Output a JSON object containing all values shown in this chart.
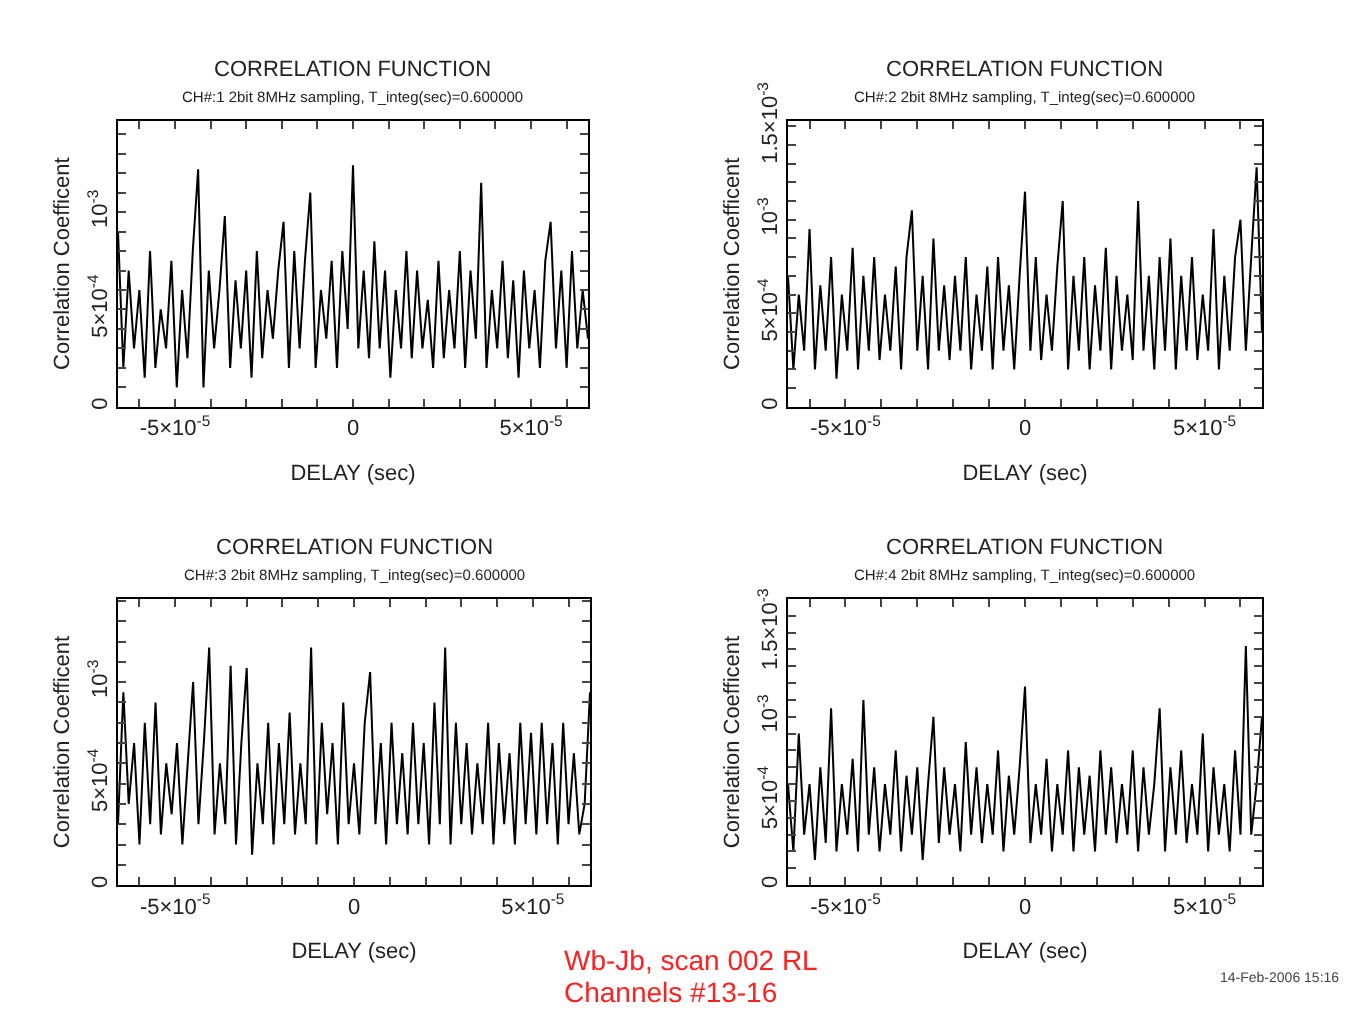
{
  "chart_data": [
    {
      "type": "line",
      "title": "CORRELATION FUNCTION",
      "subtitle": "CH#:1 2bit 8MHz sampling, T_integ(sec)=0.600000",
      "xlabel": "DELAY (sec)",
      "ylabel": "Correlation Coefficent",
      "x": [
        -6.6e-05,
        -6.45e-05,
        -6.3e-05,
        -6.15e-05,
        -6e-05,
        -5.85e-05,
        -5.7e-05,
        -5.55e-05,
        -5.4e-05,
        -5.25e-05,
        -5.1e-05,
        -4.95e-05,
        -4.8e-05,
        -4.65e-05,
        -4.5e-05,
        -4.35e-05,
        -4.2e-05,
        -4.05e-05,
        -3.9e-05,
        -3.75e-05,
        -3.6e-05,
        -3.45e-05,
        -3.3e-05,
        -3.15e-05,
        -3e-05,
        -2.85e-05,
        -2.7e-05,
        -2.55e-05,
        -2.4e-05,
        -2.25e-05,
        -2.1e-05,
        -1.95e-05,
        -1.8e-05,
        -1.65e-05,
        -1.5e-05,
        -1.35e-05,
        -1.2e-05,
        -1.05e-05,
        -9e-06,
        -7.5e-06,
        -6e-06,
        -4.5e-06,
        -3e-06,
        -1.5e-06,
        0,
        1.5e-06,
        3e-06,
        4.5e-06,
        6e-06,
        7.5e-06,
        9e-06,
        1.05e-05,
        1.2e-05,
        1.35e-05,
        1.5e-05,
        1.65e-05,
        1.8e-05,
        1.95e-05,
        2.1e-05,
        2.25e-05,
        2.4e-05,
        2.55e-05,
        2.7e-05,
        2.85e-05,
        3e-05,
        3.15e-05,
        3.3e-05,
        3.45e-05,
        3.6e-05,
        3.75e-05,
        3.9e-05,
        4.05e-05,
        4.2e-05,
        4.35e-05,
        4.5e-05,
        4.65e-05,
        4.8e-05,
        4.95e-05,
        5.1e-05,
        5.25e-05,
        5.4e-05,
        5.55e-05,
        5.7e-05,
        5.85e-05,
        6e-05,
        6.15e-05,
        6.3e-05,
        6.45e-05,
        6.6e-05
      ],
      "series": [
        {
          "color": "#000000",
          "values": [
            0.0009,
            0.0002,
            0.0007,
            0.0003,
            0.0006,
            0.00015,
            0.0008,
            0.0002,
            0.0005,
            0.0003,
            0.00075,
            0.0001,
            0.0006,
            0.00025,
            0.0008,
            0.00122,
            0.0001,
            0.0007,
            0.0003,
            0.0006,
            0.00098,
            0.0002,
            0.00065,
            0.0003,
            0.0007,
            0.00015,
            0.0008,
            0.00025,
            0.0006,
            0.00035,
            0.0007,
            0.00095,
            0.0002,
            0.0008,
            0.0003,
            0.00075,
            0.0011,
            0.0002,
            0.0006,
            0.00035,
            0.00075,
            0.0002,
            0.0008,
            0.0004,
            0.00124,
            0.0003,
            0.0007,
            0.00025,
            0.00085,
            0.0003,
            0.0007,
            0.00015,
            0.0006,
            0.0003,
            0.0008,
            0.00025,
            0.0007,
            0.0003,
            0.00055,
            0.0002,
            0.00075,
            0.00025,
            0.0006,
            0.0003,
            0.0008,
            0.0002,
            0.0007,
            0.00035,
            0.00115,
            0.0002,
            0.0006,
            0.0003,
            0.00075,
            0.00025,
            0.00065,
            0.00015,
            0.0007,
            0.0003,
            0.0006,
            0.0002,
            0.00075,
            0.00095,
            0.0003,
            0.0007,
            0.0002,
            0.0008,
            0.0003,
            0.0006,
            0.00035
          ]
        }
      ],
      "xlim": [
        -6.6e-05,
        6.6e-05
      ],
      "ylim": [
        0,
        0.00147
      ],
      "xticks": [
        {
          "value": -6e-05,
          "label": null
        },
        {
          "value": -5e-05,
          "label": "-5×10$^{-5}$"
        },
        {
          "value": -4e-05,
          "label": null
        },
        {
          "value": -3e-05,
          "label": null
        },
        {
          "value": -2e-05,
          "label": null
        },
        {
          "value": -1e-05,
          "label": null
        },
        0,
        {
          "value": 1e-05,
          "label": null
        },
        {
          "value": 2e-05,
          "label": null
        },
        {
          "value": 3e-05,
          "label": null
        },
        {
          "value": 4e-05,
          "label": null
        },
        {
          "value": 5e-05,
          "label": "5×10$^{-5}$"
        },
        {
          "value": 6e-05,
          "label": null
        }
      ],
      "yticks": [
        0,
        {
          "value": 0.0001,
          "label": null
        },
        {
          "value": 0.0002,
          "label": null
        },
        {
          "value": 0.0003,
          "label": null
        },
        {
          "value": 0.0004,
          "label": null
        },
        {
          "value": 0.0005,
          "label": "5×10$^{-4}$"
        },
        {
          "value": 0.0006,
          "label": null
        },
        {
          "value": 0.0007,
          "label": null
        },
        {
          "value": 0.0008,
          "label": null
        },
        {
          "value": 0.0009,
          "label": null
        },
        {
          "value": 0.001,
          "label": "10$^{-3}$"
        },
        {
          "value": 0.0011,
          "label": null
        },
        {
          "value": 0.0012,
          "label": null
        },
        {
          "value": 0.0013,
          "label": null
        },
        {
          "value": 0.0014,
          "label": null
        }
      ]
    },
    {
      "type": "line",
      "title": "CORRELATION FUNCTION",
      "subtitle": "CH#:2 2bit 8MHz sampling, T_integ(sec)=0.600000",
      "xlabel": "DELAY (sec)",
      "ylabel": "Correlation Coefficent",
      "x": [
        -6.6e-05,
        -6.45e-05,
        -6.3e-05,
        -6.15e-05,
        -6e-05,
        -5.85e-05,
        -5.7e-05,
        -5.55e-05,
        -5.4e-05,
        -5.25e-05,
        -5.1e-05,
        -4.95e-05,
        -4.8e-05,
        -4.65e-05,
        -4.5e-05,
        -4.35e-05,
        -4.2e-05,
        -4.05e-05,
        -3.9e-05,
        -3.75e-05,
        -3.6e-05,
        -3.45e-05,
        -3.3e-05,
        -3.15e-05,
        -3e-05,
        -2.85e-05,
        -2.7e-05,
        -2.55e-05,
        -2.4e-05,
        -2.25e-05,
        -2.1e-05,
        -1.95e-05,
        -1.8e-05,
        -1.65e-05,
        -1.5e-05,
        -1.35e-05,
        -1.2e-05,
        -1.05e-05,
        -9e-06,
        -7.5e-06,
        -6e-06,
        -4.5e-06,
        -3e-06,
        -1.5e-06,
        0,
        1.5e-06,
        3e-06,
        4.5e-06,
        6e-06,
        7.5e-06,
        9e-06,
        1.05e-05,
        1.2e-05,
        1.35e-05,
        1.5e-05,
        1.65e-05,
        1.8e-05,
        1.95e-05,
        2.1e-05,
        2.25e-05,
        2.4e-05,
        2.55e-05,
        2.7e-05,
        2.85e-05,
        3e-05,
        3.15e-05,
        3.3e-05,
        3.45e-05,
        3.6e-05,
        3.75e-05,
        3.9e-05,
        4.05e-05,
        4.2e-05,
        4.35e-05,
        4.5e-05,
        4.65e-05,
        4.8e-05,
        4.95e-05,
        5.1e-05,
        5.25e-05,
        5.4e-05,
        5.55e-05,
        5.7e-05,
        5.85e-05,
        6e-05,
        6.15e-05,
        6.3e-05,
        6.45e-05,
        6.6e-05
      ],
      "series": [
        {
          "color": "#000000",
          "values": [
            0.0007,
            0.0002,
            0.0006,
            0.0003,
            0.00095,
            0.0002,
            0.00065,
            0.0003,
            0.0008,
            0.00015,
            0.0006,
            0.0003,
            0.00085,
            0.0002,
            0.0007,
            0.0003,
            0.0008,
            0.00025,
            0.0006,
            0.0003,
            0.00075,
            0.0002,
            0.0008,
            0.00105,
            0.0003,
            0.0007,
            0.0002,
            0.0009,
            0.0003,
            0.00065,
            0.00025,
            0.0007,
            0.0003,
            0.0008,
            0.0002,
            0.0006,
            0.0003,
            0.00075,
            0.0002,
            0.0008,
            0.0003,
            0.00065,
            0.0002,
            0.0007,
            0.00115,
            0.0003,
            0.0008,
            0.00025,
            0.0006,
            0.0003,
            0.00075,
            0.0011,
            0.0002,
            0.0007,
            0.0003,
            0.0008,
            0.0002,
            0.00065,
            0.0003,
            0.00085,
            0.0002,
            0.0007,
            0.0003,
            0.0006,
            0.00025,
            0.0011,
            0.0003,
            0.0007,
            0.0002,
            0.0008,
            0.0003,
            0.0009,
            0.0002,
            0.0007,
            0.0003,
            0.0008,
            0.00025,
            0.0006,
            0.0003,
            0.00095,
            0.0002,
            0.0007,
            0.0003,
            0.0008,
            0.001,
            0.0003,
            0.0008,
            0.00128,
            0.0004
          ]
        }
      ],
      "xlim": [
        -6.6e-05,
        6.6e-05
      ],
      "ylim": [
        0,
        0.00153
      ],
      "xticks": [
        {
          "value": -6e-05,
          "label": null
        },
        {
          "value": -5e-05,
          "label": "-5×10$^{-5}$"
        },
        {
          "value": -4e-05,
          "label": null
        },
        {
          "value": -3e-05,
          "label": null
        },
        {
          "value": -2e-05,
          "label": null
        },
        {
          "value": -1e-05,
          "label": null
        },
        0,
        {
          "value": 1e-05,
          "label": null
        },
        {
          "value": 2e-05,
          "label": null
        },
        {
          "value": 3e-05,
          "label": null
        },
        {
          "value": 4e-05,
          "label": null
        },
        {
          "value": 5e-05,
          "label": "5×10$^{-5}$"
        },
        {
          "value": 6e-05,
          "label": null
        }
      ],
      "yticks": [
        0,
        {
          "value": 0.0001,
          "label": null
        },
        {
          "value": 0.0002,
          "label": null
        },
        {
          "value": 0.0003,
          "label": null
        },
        {
          "value": 0.0004,
          "label": null
        },
        {
          "value": 0.0005,
          "label": "5×10$^{-4}$"
        },
        {
          "value": 0.0006,
          "label": null
        },
        {
          "value": 0.0007,
          "label": null
        },
        {
          "value": 0.0008,
          "label": null
        },
        {
          "value": 0.0009,
          "label": null
        },
        {
          "value": 0.001,
          "label": "10$^{-3}$"
        },
        {
          "value": 0.0011,
          "label": null
        },
        {
          "value": 0.0012,
          "label": null
        },
        {
          "value": 0.0013,
          "label": null
        },
        {
          "value": 0.0014,
          "label": null
        },
        {
          "value": 0.0015,
          "label": "1.5×10$^{-3}$"
        }
      ]
    },
    {
      "type": "line",
      "title": "CORRELATION FUNCTION",
      "subtitle": "CH#:3 2bit 8MHz sampling, T_integ(sec)=0.600000",
      "xlabel": "DELAY (sec)",
      "ylabel": "Correlation Coefficent",
      "x": [
        -6.6e-05,
        -6.45e-05,
        -6.3e-05,
        -6.15e-05,
        -6e-05,
        -5.85e-05,
        -5.7e-05,
        -5.55e-05,
        -5.4e-05,
        -5.25e-05,
        -5.1e-05,
        -4.95e-05,
        -4.8e-05,
        -4.65e-05,
        -4.5e-05,
        -4.35e-05,
        -4.2e-05,
        -4.05e-05,
        -3.9e-05,
        -3.75e-05,
        -3.6e-05,
        -3.45e-05,
        -3.3e-05,
        -3.15e-05,
        -3e-05,
        -2.85e-05,
        -2.7e-05,
        -2.55e-05,
        -2.4e-05,
        -2.25e-05,
        -2.1e-05,
        -1.95e-05,
        -1.8e-05,
        -1.65e-05,
        -1.5e-05,
        -1.35e-05,
        -1.2e-05,
        -1.05e-05,
        -9e-06,
        -7.5e-06,
        -6e-06,
        -4.5e-06,
        -3e-06,
        -1.5e-06,
        0,
        1.5e-06,
        3e-06,
        4.5e-06,
        6e-06,
        7.5e-06,
        9e-06,
        1.05e-05,
        1.2e-05,
        1.35e-05,
        1.5e-05,
        1.65e-05,
        1.8e-05,
        1.95e-05,
        2.1e-05,
        2.25e-05,
        2.4e-05,
        2.55e-05,
        2.7e-05,
        2.85e-05,
        3e-05,
        3.15e-05,
        3.3e-05,
        3.45e-05,
        3.6e-05,
        3.75e-05,
        3.9e-05,
        4.05e-05,
        4.2e-05,
        4.35e-05,
        4.5e-05,
        4.65e-05,
        4.8e-05,
        4.95e-05,
        5.1e-05,
        5.25e-05,
        5.4e-05,
        5.55e-05,
        5.7e-05,
        5.85e-05,
        6e-05,
        6.15e-05,
        6.3e-05,
        6.45e-05,
        6.6e-05
      ],
      "series": [
        {
          "color": "#000000",
          "values": [
            0.0003,
            0.00095,
            0.0004,
            0.0007,
            0.0002,
            0.0008,
            0.0003,
            0.0009,
            0.00025,
            0.0006,
            0.00035,
            0.0007,
            0.0002,
            0.0006,
            0.001,
            0.0003,
            0.0007,
            0.00117,
            0.00025,
            0.0006,
            0.0003,
            0.00108,
            0.0002,
            0.0007,
            0.00107,
            0.00015,
            0.0006,
            0.0003,
            0.0008,
            0.0002,
            0.0007,
            0.0003,
            0.00085,
            0.00025,
            0.0006,
            0.0003,
            0.00117,
            0.0002,
            0.0008,
            0.00035,
            0.0007,
            0.0002,
            0.0009,
            0.0003,
            0.0006,
            0.00025,
            0.0008,
            0.00105,
            0.0003,
            0.0007,
            0.0002,
            0.0008,
            0.0003,
            0.00065,
            0.00025,
            0.0008,
            0.0003,
            0.0007,
            0.0002,
            0.0009,
            0.0003,
            0.00117,
            0.0002,
            0.0008,
            0.0003,
            0.0007,
            0.00025,
            0.0006,
            0.0003,
            0.0008,
            0.0002,
            0.0007,
            0.0003,
            0.00065,
            0.0002,
            0.0008,
            0.0003,
            0.00075,
            0.00025,
            0.0008,
            0.0003,
            0.0007,
            0.0002,
            0.0008,
            0.0003,
            0.00065,
            0.00025,
            0.0004,
            0.00095
          ]
        }
      ],
      "xlim": [
        -6.6e-05,
        6.6e-05
      ],
      "ylim": [
        0,
        0.00141
      ],
      "xticks": [
        {
          "value": -6e-05,
          "label": null
        },
        {
          "value": -5e-05,
          "label": "-5×10$^{-5}$"
        },
        {
          "value": -4e-05,
          "label": null
        },
        {
          "value": -3e-05,
          "label": null
        },
        {
          "value": -2e-05,
          "label": null
        },
        {
          "value": -1e-05,
          "label": null
        },
        0,
        {
          "value": 1e-05,
          "label": null
        },
        {
          "value": 2e-05,
          "label": null
        },
        {
          "value": 3e-05,
          "label": null
        },
        {
          "value": 4e-05,
          "label": null
        },
        {
          "value": 5e-05,
          "label": "5×10$^{-5}$"
        },
        {
          "value": 6e-05,
          "label": null
        }
      ],
      "yticks": [
        0,
        {
          "value": 0.0001,
          "label": null
        },
        {
          "value": 0.0002,
          "label": null
        },
        {
          "value": 0.0003,
          "label": null
        },
        {
          "value": 0.0004,
          "label": null
        },
        {
          "value": 0.0005,
          "label": "5×10$^{-4}$"
        },
        {
          "value": 0.0006,
          "label": null
        },
        {
          "value": 0.0007,
          "label": null
        },
        {
          "value": 0.0008,
          "label": null
        },
        {
          "value": 0.0009,
          "label": null
        },
        {
          "value": 0.001,
          "label": "10$^{-3}$"
        },
        {
          "value": 0.0011,
          "label": null
        },
        {
          "value": 0.0012,
          "label": null
        },
        {
          "value": 0.0013,
          "label": null
        },
        {
          "value": 0.0014,
          "label": null
        }
      ]
    },
    {
      "type": "line",
      "title": "CORRELATION FUNCTION",
      "subtitle": "CH#:4 2bit 8MHz sampling, T_integ(sec)=0.600000",
      "xlabel": "DELAY (sec)",
      "ylabel": "Correlation Coefficent",
      "annotations": [
        "Wb-Jb, scan 002 RL",
        "Channels #13-16",
        "14-Feb-2006 15:16"
      ],
      "x": [
        -6.6e-05,
        -6.45e-05,
        -6.3e-05,
        -6.15e-05,
        -6e-05,
        -5.85e-05,
        -5.7e-05,
        -5.55e-05,
        -5.4e-05,
        -5.25e-05,
        -5.1e-05,
        -4.95e-05,
        -4.8e-05,
        -4.65e-05,
        -4.5e-05,
        -4.35e-05,
        -4.2e-05,
        -4.05e-05,
        -3.9e-05,
        -3.75e-05,
        -3.6e-05,
        -3.45e-05,
        -3.3e-05,
        -3.15e-05,
        -3e-05,
        -2.85e-05,
        -2.7e-05,
        -2.55e-05,
        -2.4e-05,
        -2.25e-05,
        -2.1e-05,
        -1.95e-05,
        -1.8e-05,
        -1.65e-05,
        -1.5e-05,
        -1.35e-05,
        -1.2e-05,
        -1.05e-05,
        -9e-06,
        -7.5e-06,
        -6e-06,
        -4.5e-06,
        -3e-06,
        -1.5e-06,
        0,
        1.5e-06,
        3e-06,
        4.5e-06,
        6e-06,
        7.5e-06,
        9e-06,
        1.05e-05,
        1.2e-05,
        1.35e-05,
        1.5e-05,
        1.65e-05,
        1.8e-05,
        1.95e-05,
        2.1e-05,
        2.25e-05,
        2.4e-05,
        2.55e-05,
        2.7e-05,
        2.85e-05,
        3e-05,
        3.15e-05,
        3.3e-05,
        3.45e-05,
        3.6e-05,
        3.75e-05,
        3.9e-05,
        4.05e-05,
        4.2e-05,
        4.35e-05,
        4.5e-05,
        4.65e-05,
        4.8e-05,
        4.95e-05,
        5.1e-05,
        5.25e-05,
        5.4e-05,
        5.55e-05,
        5.7e-05,
        5.85e-05,
        6e-05,
        6.15e-05,
        6.3e-05,
        6.45e-05,
        6.6e-05
      ],
      "series": [
        {
          "color": "#000000",
          "values": [
            0.0006,
            0.0002,
            0.0009,
            0.0003,
            0.0006,
            0.00015,
            0.0007,
            0.00025,
            0.00105,
            0.0002,
            0.0006,
            0.0003,
            0.00075,
            0.0002,
            0.0011,
            0.0003,
            0.0007,
            0.0002,
            0.0006,
            0.0003,
            0.0008,
            0.0002,
            0.00065,
            0.0003,
            0.0007,
            0.00015,
            0.0006,
            0.001,
            0.00025,
            0.0007,
            0.0003,
            0.0006,
            0.0002,
            0.00085,
            0.0003,
            0.0007,
            0.00025,
            0.0006,
            0.0003,
            0.0008,
            0.0002,
            0.00065,
            0.0003,
            0.0007,
            0.00118,
            0.00025,
            0.0006,
            0.0003,
            0.00075,
            0.0002,
            0.0006,
            0.0003,
            0.0008,
            0.0002,
            0.0007,
            0.0003,
            0.00065,
            0.0002,
            0.0008,
            0.0003,
            0.0007,
            0.00025,
            0.0006,
            0.0003,
            0.0008,
            0.0002,
            0.0007,
            0.0003,
            0.0006,
            0.00105,
            0.0002,
            0.0007,
            0.0003,
            0.0008,
            0.00025,
            0.0006,
            0.0003,
            0.0009,
            0.0002,
            0.0007,
            0.0003,
            0.0006,
            0.0002,
            0.0008,
            0.0003,
            0.00142,
            0.0003,
            0.0006,
            0.001
          ]
        }
      ],
      "xlim": [
        -6.6e-05,
        6.6e-05
      ],
      "ylim": [
        0,
        0.0017
      ],
      "xticks": [
        {
          "value": -6e-05,
          "label": null
        },
        {
          "value": -5e-05,
          "label": "-5×10$^{-5}$"
        },
        {
          "value": -4e-05,
          "label": null
        },
        {
          "value": -3e-05,
          "label": null
        },
        {
          "value": -2e-05,
          "label": null
        },
        {
          "value": -1e-05,
          "label": null
        },
        0,
        {
          "value": 1e-05,
          "label": null
        },
        {
          "value": 2e-05,
          "label": null
        },
        {
          "value": 3e-05,
          "label": null
        },
        {
          "value": 4e-05,
          "label": null
        },
        {
          "value": 5e-05,
          "label": "5×10$^{-5}$"
        },
        {
          "value": 6e-05,
          "label": null
        }
      ],
      "yticks": [
        0,
        {
          "value": 0.0001,
          "label": null
        },
        {
          "value": 0.0002,
          "label": null
        },
        {
          "value": 0.0003,
          "label": null
        },
        {
          "value": 0.0004,
          "label": null
        },
        {
          "value": 0.0005,
          "label": "5×10$^{-4}$"
        },
        {
          "value": 0.0006,
          "label": null
        },
        {
          "value": 0.0007,
          "label": null
        },
        {
          "value": 0.0008,
          "label": null
        },
        {
          "value": 0.0009,
          "label": null
        },
        {
          "value": 0.001,
          "label": "10$^{-3}$"
        },
        {
          "value": 0.0011,
          "label": null
        },
        {
          "value": 0.0012,
          "label": null
        },
        {
          "value": 0.0013,
          "label": null
        },
        {
          "value": 0.0014,
          "label": null
        },
        {
          "value": 0.0015,
          "label": "1.5×10$^{-3}$"
        },
        {
          "value": 0.0016,
          "label": null
        }
      ]
    }
  ]
}
